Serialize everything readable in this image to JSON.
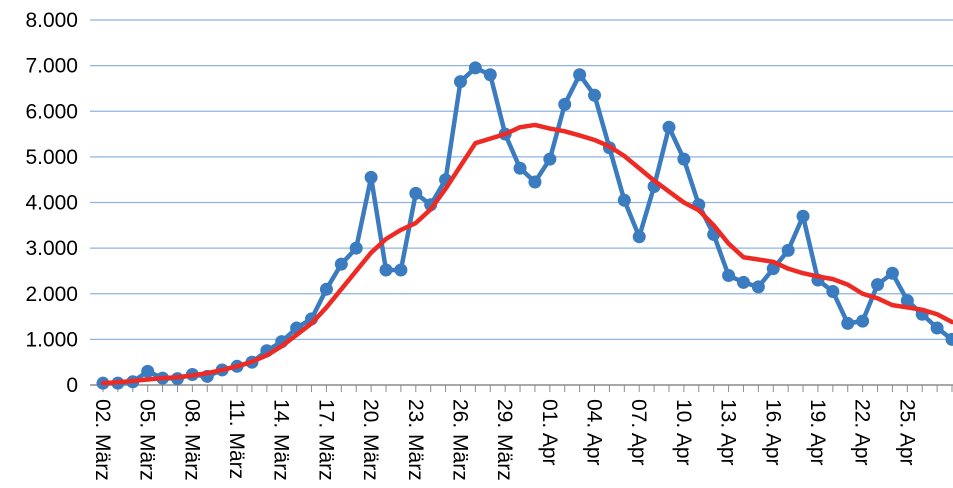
{
  "chart_data": {
    "type": "line",
    "title": "",
    "xlabel": "",
    "ylabel": "",
    "ylim": [
      0,
      8000
    ],
    "yticks": [
      "0",
      "1.000",
      "2.000",
      "3.000",
      "4.000",
      "5.000",
      "6.000",
      "7.000",
      "8.000"
    ],
    "grid": true,
    "legend": "none",
    "xtick_labels": [
      "02. März",
      "05. März",
      "08. März",
      "11. März",
      "14. März",
      "17. März",
      "20. März",
      "23. März",
      "26. März",
      "29. März",
      "01. Apr",
      "04. Apr",
      "07. Apr",
      "10. Apr",
      "13. Apr",
      "16. Apr",
      "19. Apr",
      "22. Apr",
      "25. Apr"
    ],
    "series": [
      {
        "color": "#3b7bbf",
        "marker": "circle",
        "values": [
          40,
          40,
          70,
          300,
          150,
          140,
          230,
          190,
          330,
          410,
          500,
          750,
          950,
          1250,
          1450,
          2100,
          2650,
          3000,
          4550,
          2520,
          2520,
          4200,
          3950,
          4500,
          6650,
          6950,
          6800,
          5500,
          4750,
          4450,
          4950,
          6150,
          6800,
          6350,
          5200,
          4050,
          3250,
          4350,
          5650,
          4950,
          3950,
          3300,
          2400,
          2250,
          2150,
          2550,
          2950,
          3700,
          2300,
          2050,
          1350,
          1400,
          2200,
          2450,
          1850,
          1550,
          1250,
          1000
        ]
      },
      {
        "color": "#ee2a24",
        "marker": "none",
        "values": [
          40,
          60,
          90,
          120,
          150,
          170,
          210,
          260,
          330,
          410,
          510,
          650,
          850,
          1100,
          1350,
          1700,
          2100,
          2500,
          2900,
          3200,
          3400,
          3550,
          3850,
          4300,
          4800,
          5300,
          5400,
          5500,
          5650,
          5700,
          5620,
          5560,
          5470,
          5370,
          5230,
          5020,
          4750,
          4480,
          4240,
          4000,
          3830,
          3500,
          3100,
          2800,
          2750,
          2700,
          2550,
          2450,
          2380,
          2320,
          2200,
          2000,
          1900,
          1750,
          1700,
          1650,
          1550,
          1380
        ]
      }
    ]
  }
}
